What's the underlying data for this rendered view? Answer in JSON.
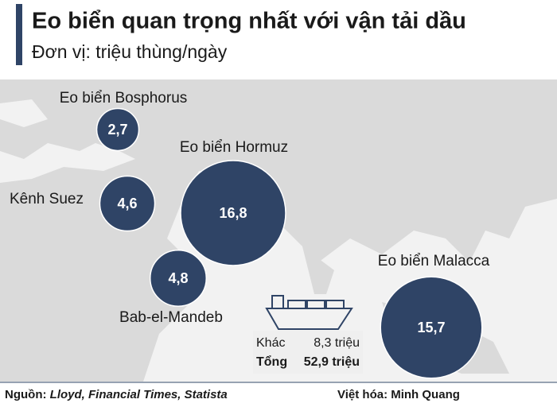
{
  "chart_data": {
    "type": "bubble",
    "title": "Eo biển quan trọng nhất với vận tải dầu",
    "subtitle": "Đơn vị: triệu thùng/ngày",
    "categories": [
      "Eo biển Bosphorus",
      "Kênh Suez",
      "Eo biển Hormuz",
      "Bab-el-Mandeb",
      "Eo biển Malacca"
    ],
    "values": [
      2.7,
      4.6,
      16.8,
      4.8,
      15.7
    ],
    "value_labels": [
      "2,7",
      "4,6",
      "16,8",
      "4,8",
      "15,7"
    ],
    "color": "#2f4466",
    "summary": {
      "labels": [
        "Khác",
        "Tổng"
      ],
      "values": [
        8.3,
        52.9
      ],
      "value_labels": [
        "8,3 triệu",
        "52,9 triệu"
      ]
    },
    "source_label": "Nguồn:",
    "source": "Lloyd, Financial Times, Statista",
    "credit": "Việt hóa: Minh Quang"
  }
}
